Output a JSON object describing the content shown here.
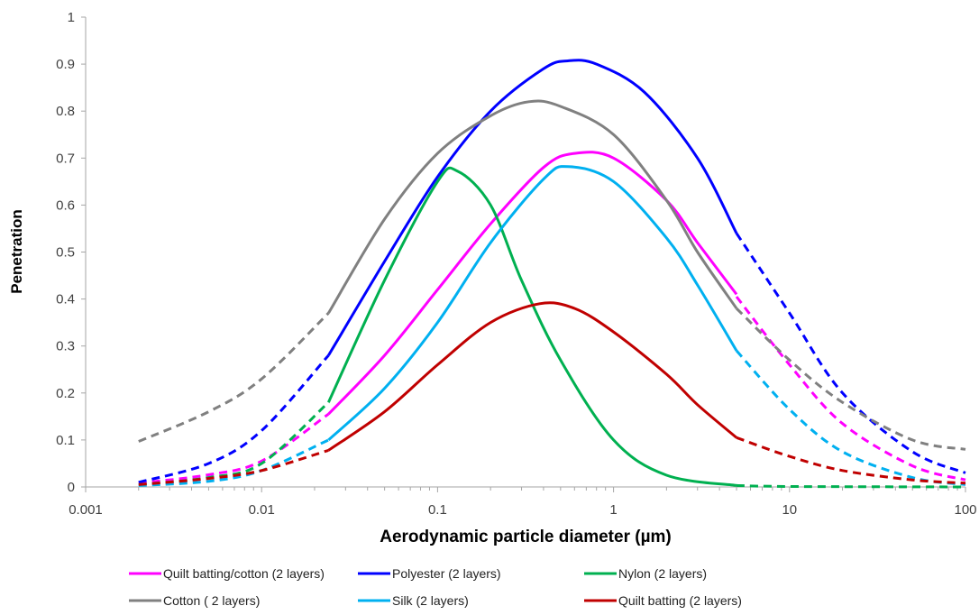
{
  "chart_data": {
    "type": "line",
    "xlabel": "Aerodynamic particle diameter (µm)",
    "ylabel": "Penetration",
    "x_scale": "log",
    "xlim": [
      0.001,
      100
    ],
    "ylim": [
      0,
      1
    ],
    "x_ticks": [
      0.001,
      0.01,
      0.1,
      1,
      10,
      100
    ],
    "x_tick_labels": [
      "0.001",
      "0.01",
      "0.1",
      "1",
      "10",
      "100"
    ],
    "y_ticks": [
      0,
      0.1,
      0.2,
      0.3,
      0.4,
      0.5,
      0.6,
      0.7,
      0.8,
      0.9,
      1
    ],
    "y_tick_labels": [
      "0",
      "0.1",
      "0.2",
      "0.3",
      "0.4",
      "0.5",
      "0.6",
      "0.7",
      "0.8",
      "0.9",
      "1"
    ],
    "grid": false,
    "legend_position": "bottom",
    "series": [
      {
        "name": "Quilt batting/cotton (2 layers)",
        "color": "#ff00ff",
        "dashed": [
          [
            0.002,
            0.008
          ],
          [
            0.005,
            0.026
          ],
          [
            0.01,
            0.055
          ],
          [
            0.024,
            0.155
          ]
        ],
        "solid": [
          [
            0.024,
            0.155
          ],
          [
            0.05,
            0.28
          ],
          [
            0.1,
            0.42
          ],
          [
            0.2,
            0.56
          ],
          [
            0.4,
            0.68
          ],
          [
            0.6,
            0.71
          ],
          [
            1,
            0.7
          ],
          [
            2,
            0.61
          ],
          [
            3,
            0.52
          ],
          [
            5,
            0.41
          ]
        ],
        "dashed2": [
          [
            5,
            0.405
          ],
          [
            10,
            0.26
          ],
          [
            20,
            0.135
          ],
          [
            50,
            0.045
          ],
          [
            100,
            0.015
          ]
        ]
      },
      {
        "name": "Polyester (2 layers)",
        "color": "#0000ff",
        "dashed": [
          [
            0.002,
            0.01
          ],
          [
            0.005,
            0.05
          ],
          [
            0.01,
            0.12
          ],
          [
            0.024,
            0.28
          ]
        ],
        "solid": [
          [
            0.024,
            0.28
          ],
          [
            0.05,
            0.48
          ],
          [
            0.1,
            0.66
          ],
          [
            0.2,
            0.8
          ],
          [
            0.4,
            0.89
          ],
          [
            0.55,
            0.907
          ],
          [
            0.8,
            0.9
          ],
          [
            1.5,
            0.84
          ],
          [
            3,
            0.7
          ],
          [
            5,
            0.54
          ]
        ],
        "dashed2": [
          [
            5,
            0.54
          ],
          [
            10,
            0.37
          ],
          [
            20,
            0.2
          ],
          [
            50,
            0.075
          ],
          [
            100,
            0.03
          ]
        ]
      },
      {
        "name": "Nylon (2 layers)",
        "color": "#00b050",
        "dashed": [
          [
            0.002,
            0.005
          ],
          [
            0.005,
            0.02
          ],
          [
            0.01,
            0.05
          ],
          [
            0.024,
            0.18
          ]
        ],
        "solid": [
          [
            0.024,
            0.18
          ],
          [
            0.05,
            0.44
          ],
          [
            0.1,
            0.65
          ],
          [
            0.13,
            0.672
          ],
          [
            0.2,
            0.6
          ],
          [
            0.3,
            0.44
          ],
          [
            0.5,
            0.27
          ],
          [
            1,
            0.1
          ],
          [
            2,
            0.025
          ],
          [
            5,
            0.003
          ]
        ],
        "dashed2": [
          [
            5,
            0.003
          ],
          [
            10,
            0.001
          ],
          [
            100,
            0.0
          ]
        ]
      },
      {
        "name": "Cotton ( 2 layers)",
        "color": "#808080",
        "dashed": [
          [
            0.002,
            0.097
          ],
          [
            0.005,
            0.16
          ],
          [
            0.01,
            0.23
          ],
          [
            0.024,
            0.37
          ]
        ],
        "solid": [
          [
            0.024,
            0.37
          ],
          [
            0.05,
            0.57
          ],
          [
            0.1,
            0.71
          ],
          [
            0.2,
            0.79
          ],
          [
            0.33,
            0.82
          ],
          [
            0.5,
            0.81
          ],
          [
            1,
            0.75
          ],
          [
            2,
            0.61
          ],
          [
            3,
            0.5
          ],
          [
            5,
            0.38
          ]
        ],
        "dashed2": [
          [
            5,
            0.38
          ],
          [
            10,
            0.27
          ],
          [
            20,
            0.18
          ],
          [
            50,
            0.1
          ],
          [
            100,
            0.08
          ]
        ]
      },
      {
        "name": "Silk (2 layers)",
        "color": "#00b0f0",
        "dashed": [
          [
            0.002,
            0.003
          ],
          [
            0.005,
            0.012
          ],
          [
            0.01,
            0.035
          ],
          [
            0.024,
            0.1
          ]
        ],
        "solid": [
          [
            0.024,
            0.1
          ],
          [
            0.05,
            0.21
          ],
          [
            0.1,
            0.35
          ],
          [
            0.2,
            0.52
          ],
          [
            0.4,
            0.655
          ],
          [
            0.55,
            0.682
          ],
          [
            1,
            0.65
          ],
          [
            2,
            0.53
          ],
          [
            3,
            0.43
          ],
          [
            5,
            0.29
          ]
        ],
        "dashed2": [
          [
            5,
            0.29
          ],
          [
            10,
            0.165
          ],
          [
            20,
            0.075
          ],
          [
            50,
            0.02
          ],
          [
            100,
            0.005
          ]
        ]
      },
      {
        "name": "Quilt batting (2 layers)",
        "color": "#c00000",
        "dashed": [
          [
            0.002,
            0.005
          ],
          [
            0.005,
            0.018
          ],
          [
            0.01,
            0.035
          ],
          [
            0.024,
            0.078
          ]
        ],
        "solid": [
          [
            0.024,
            0.078
          ],
          [
            0.05,
            0.16
          ],
          [
            0.1,
            0.26
          ],
          [
            0.2,
            0.35
          ],
          [
            0.38,
            0.39
          ],
          [
            0.6,
            0.38
          ],
          [
            1,
            0.33
          ],
          [
            2,
            0.24
          ],
          [
            3,
            0.175
          ],
          [
            5,
            0.105
          ]
        ],
        "dashed2": [
          [
            5,
            0.105
          ],
          [
            10,
            0.065
          ],
          [
            20,
            0.035
          ],
          [
            50,
            0.015
          ],
          [
            100,
            0.008
          ]
        ]
      }
    ]
  }
}
